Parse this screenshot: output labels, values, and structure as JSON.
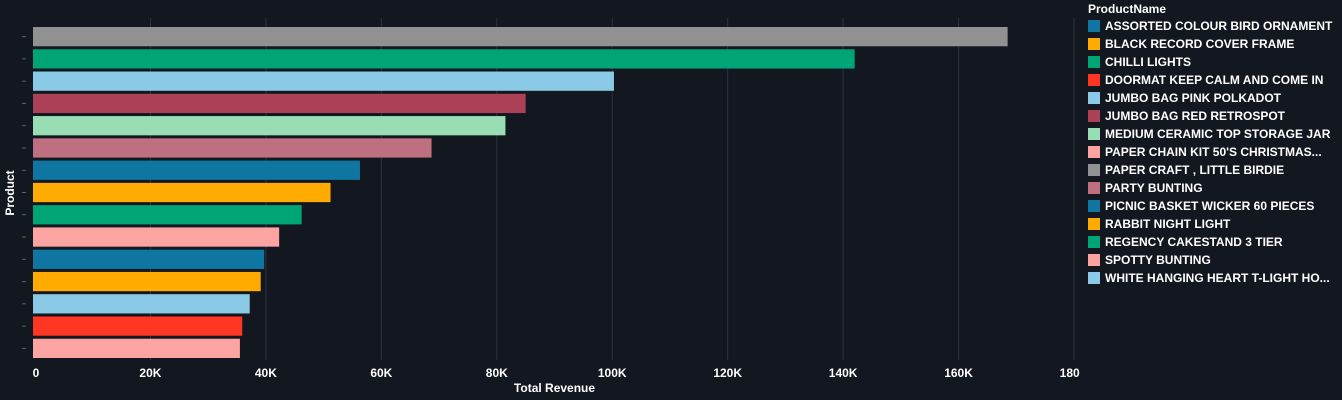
{
  "chart_data": {
    "type": "bar",
    "orientation": "horizontal",
    "xlabel": "Total Revenue",
    "ylabel": "Product",
    "xlim": [
      0,
      180000
    ],
    "x_ticks": [
      0,
      20000,
      40000,
      60000,
      80000,
      100000,
      120000,
      140000,
      160000,
      180000
    ],
    "x_tick_labels": [
      "0",
      "20K",
      "40K",
      "60K",
      "80K",
      "100K",
      "120K",
      "140K",
      "160K",
      "180K"
    ],
    "grid": "vertical",
    "legend_position": "right",
    "legend_title": "ProductName",
    "legend": [
      {
        "name": "ASSORTED COLOUR BIRD ORNAMENT",
        "color": "#0e76a0"
      },
      {
        "name": "BLACK RECORD COVER FRAME",
        "color": "#ffab00"
      },
      {
        "name": "CHILLI LIGHTS",
        "color": "#00a575"
      },
      {
        "name": "DOORMAT KEEP CALM AND COME IN",
        "color": "#ff3621"
      },
      {
        "name": "JUMBO BAG PINK POLKADOT",
        "color": "#8bcae7"
      },
      {
        "name": "JUMBO BAG RED RETROSPOT",
        "color": "#ab4057"
      },
      {
        "name": "MEDIUM CERAMIC TOP STORAGE JAR",
        "color": "#99ddb4"
      },
      {
        "name": "PAPER CHAIN KIT 50'S CHRISTMAS...",
        "color": "#fca4a1"
      },
      {
        "name": "PAPER CRAFT , LITTLE BIRDIE",
        "color": "#919191"
      },
      {
        "name": "PARTY BUNTING",
        "color": "#bf7080"
      },
      {
        "name": "PICNIC BASKET WICKER 60 PIECES",
        "color": "#0e76a0"
      },
      {
        "name": "RABBIT NIGHT LIGHT",
        "color": "#ffab00"
      },
      {
        "name": "REGENCY CAKESTAND 3 TIER",
        "color": "#00a575"
      },
      {
        "name": "SPOTTY BUNTING",
        "color": "#fca4a1"
      },
      {
        "name": "WHITE HANGING HEART T-LIGHT HO...",
        "color": "#8bcae7"
      }
    ],
    "bars": [
      {
        "product": "PAPER CRAFT , LITTLE BIRDIE",
        "value": 168500,
        "color": "#919191"
      },
      {
        "product": "REGENCY CAKESTAND 3 TIER",
        "value": 142000,
        "color": "#00a575"
      },
      {
        "product": "WHITE HANGING HEART T-LIGHT HO...",
        "value": 100300,
        "color": "#8bcae7"
      },
      {
        "product": "JUMBO BAG RED RETROSPOT",
        "value": 85000,
        "color": "#ab4057"
      },
      {
        "product": "MEDIUM CERAMIC TOP STORAGE JAR",
        "value": 81500,
        "color": "#99ddb4"
      },
      {
        "product": "PARTY BUNTING",
        "value": 68700,
        "color": "#bf7080"
      },
      {
        "product": "ASSORTED COLOUR BIRD ORNAMENT",
        "value": 56300,
        "color": "#0e76a0"
      },
      {
        "product": "RABBIT NIGHT LIGHT",
        "value": 51200,
        "color": "#ffab00"
      },
      {
        "product": "CHILLI LIGHTS",
        "value": 46200,
        "color": "#00a575"
      },
      {
        "product": "SPOTTY BUNTING",
        "value": 42300,
        "color": "#fca4a1"
      },
      {
        "product": "PICNIC BASKET WICKER 60 PIECES",
        "value": 39700,
        "color": "#0e76a0"
      },
      {
        "product": "BLACK RECORD COVER FRAME",
        "value": 39100,
        "color": "#ffab00"
      },
      {
        "product": "JUMBO BAG PINK POLKADOT",
        "value": 37200,
        "color": "#8bcae7"
      },
      {
        "product": "DOORMAT KEEP CALM AND COME IN",
        "value": 35900,
        "color": "#ff3621"
      },
      {
        "product": "PAPER CHAIN KIT 50'S CHRISTMAS...",
        "value": 35500,
        "color": "#fca4a1"
      }
    ]
  }
}
